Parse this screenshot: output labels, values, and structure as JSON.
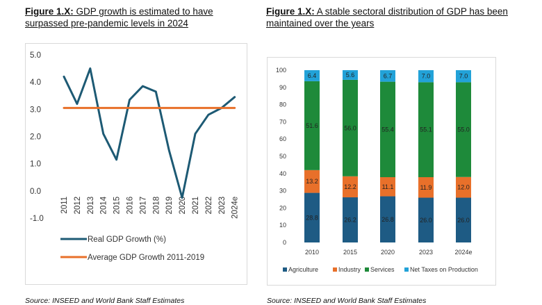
{
  "left": {
    "figure_label": "Figure 1.X:",
    "title_rest": " GDP growth is estimated to have surpassed pre-pandemic levels in 2024",
    "source": "Source: INSEED and World Bank Staff Estimates"
  },
  "right": {
    "figure_label": "Figure 1.X:",
    "title_rest": " A stable sectoral distribution of GDP has been maintained over the years",
    "source": "Source: INSEED and World Bank Staff Estimates"
  },
  "chart_data": [
    {
      "type": "line",
      "x": [
        "2011",
        "2012",
        "2013",
        "2014",
        "2015",
        "2016",
        "2017",
        "2018",
        "2019",
        "2020",
        "2021",
        "2022",
        "2023",
        "2024e"
      ],
      "series": [
        {
          "name": "Real GDP Growth (%)",
          "color": "#1d5a74",
          "values": [
            4.2,
            3.2,
            4.5,
            2.1,
            1.15,
            3.35,
            3.85,
            3.65,
            1.5,
            -0.25,
            2.1,
            2.8,
            3.05,
            3.45
          ]
        },
        {
          "name": "Average GDP Growth 2011-2019",
          "color": "#e8702a",
          "values": [
            3.05,
            3.05,
            3.05,
            3.05,
            3.05,
            3.05,
            3.05,
            3.05,
            3.05,
            3.05,
            3.05,
            3.05,
            3.05,
            3.05
          ]
        }
      ],
      "y_tick_labels": [
        "5.0",
        "4.0",
        "3.0",
        "2.0",
        "1.0",
        "0.0",
        "-1.0"
      ],
      "ylim": [
        -1.0,
        5.0
      ],
      "grid": false,
      "legend": "bottom"
    },
    {
      "type": "bar",
      "stacked": true,
      "categories": [
        "2010",
        "2015",
        "2020",
        "2023",
        "2024e"
      ],
      "series": [
        {
          "name": "Agriculture",
          "color": "#1e5b84",
          "values": [
            28.8,
            26.2,
            26.8,
            26.0,
            26.0
          ],
          "labels": [
            "28.8",
            "26.2",
            "26.8",
            "26.0",
            "26.0"
          ]
        },
        {
          "name": "Industry",
          "color": "#e8702a",
          "values": [
            13.2,
            12.2,
            11.1,
            11.9,
            12.0
          ],
          "labels": [
            "13.2",
            "12.2",
            "11.1",
            "11.9",
            "12.0"
          ]
        },
        {
          "name": "Services",
          "color": "#1e8a3a",
          "values": [
            51.6,
            56.0,
            55.4,
            55.1,
            55.0
          ],
          "labels": [
            "51.6",
            "56.0",
            "55.4",
            "55.1",
            "55.0"
          ]
        },
        {
          "name": "Net Taxes on Production",
          "color": "#22a2d8",
          "values": [
            6.4,
            5.6,
            6.7,
            7.0,
            7.0
          ],
          "labels": [
            "6.4",
            "5.6",
            "6.7",
            "7.0",
            "7.0"
          ]
        }
      ],
      "y_tick_labels": [
        "0",
        "10",
        "20",
        "30",
        "40",
        "50",
        "60",
        "70",
        "80",
        "90",
        "100"
      ],
      "ylim": [
        0,
        100
      ],
      "grid": false,
      "legend": "bottom"
    }
  ]
}
